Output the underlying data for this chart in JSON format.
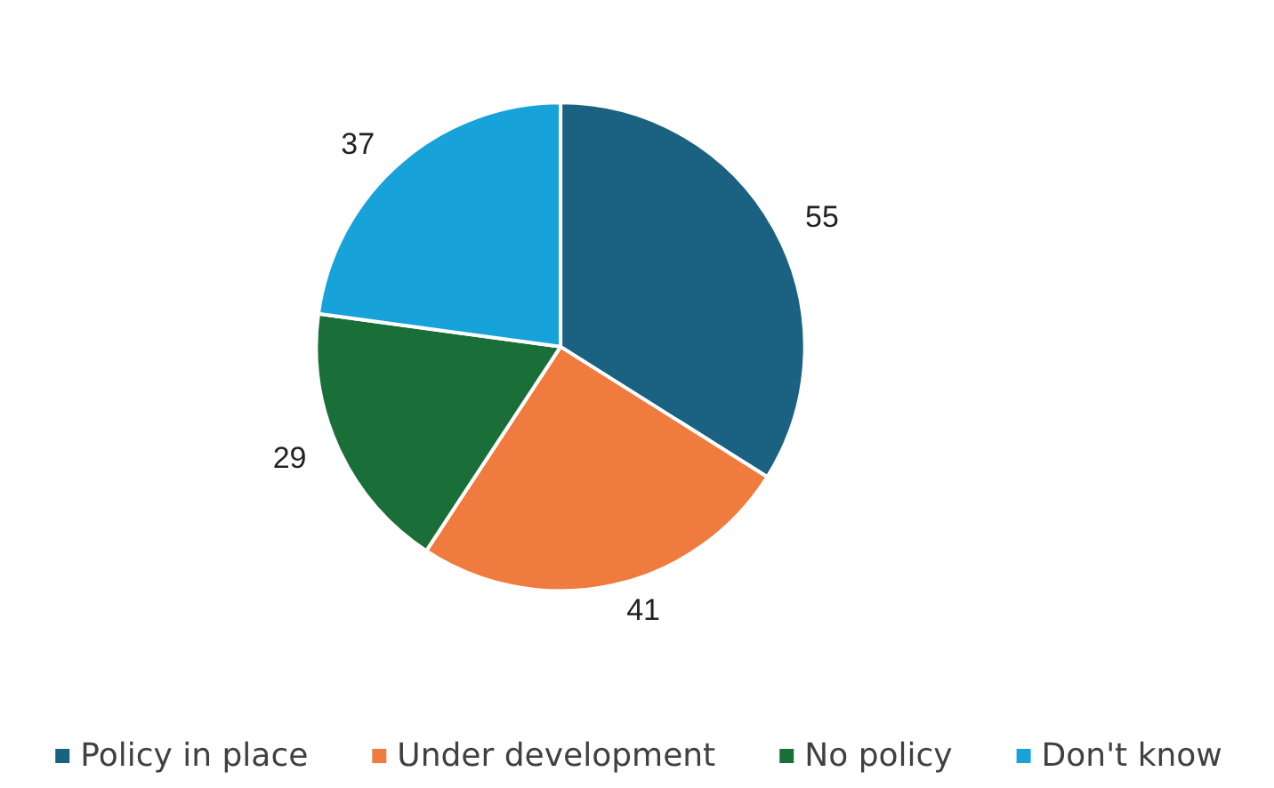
{
  "chart_data": {
    "type": "pie",
    "categories": [
      "Policy in place",
      "Under development",
      "No policy",
      "Don't know"
    ],
    "values": [
      55,
      41,
      29,
      37
    ],
    "colors": [
      "#1b6182",
      "#f07b3f",
      "#1a6e38",
      "#17a2d9"
    ],
    "data_labels": true,
    "legend": "bottom"
  }
}
